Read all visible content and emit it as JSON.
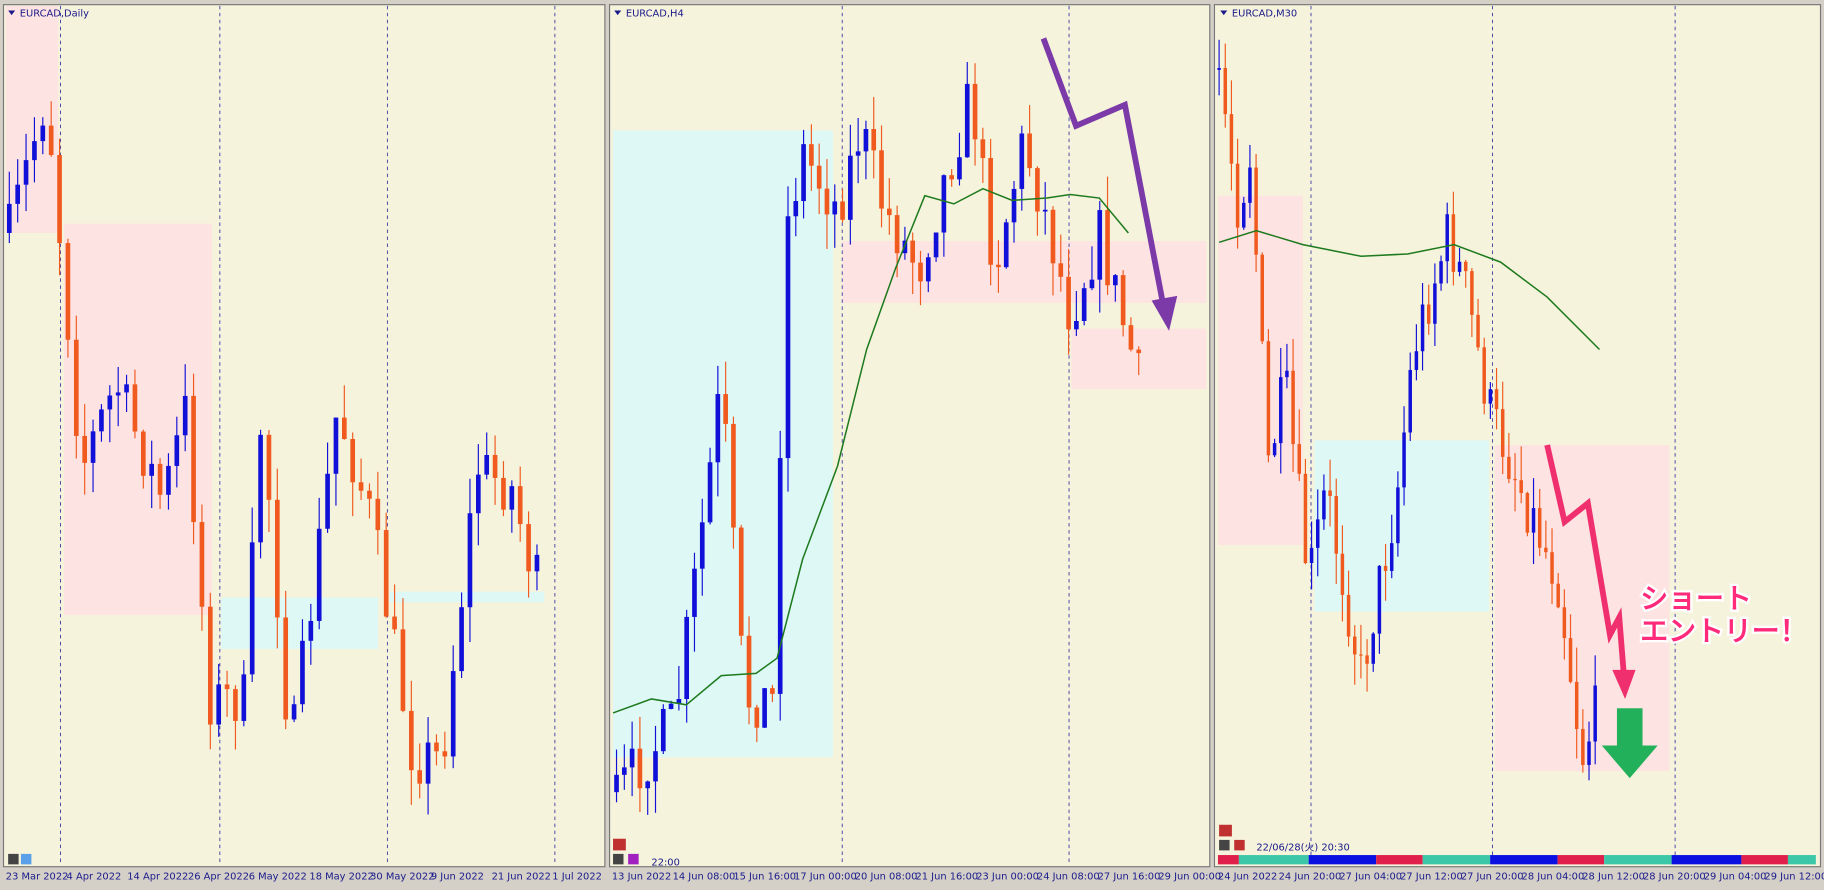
{
  "panels": [
    {
      "title": "EURCAD,Daily",
      "x_labels": [
        "23 Mar 2022",
        "4 Apr 2022",
        "14 Apr 2022",
        "26 Apr 2022",
        "6 May 2022",
        "18 May 2022",
        "30 May 2022",
        "9 Jun 2022",
        "21 Jun 2022",
        "1 Jul 2022"
      ]
    },
    {
      "title": "EURCAD,H4",
      "time": "22:00",
      "x_labels": [
        "13 Jun 2022",
        "14 Jun 08:00",
        "15 Jun 16:00",
        "17 Jun 00:00",
        "20 Jun 08:00",
        "21 Jun 16:00",
        "23 Jun 00:00",
        "24 Jun 08:00",
        "27 Jun 16:00",
        "29 Jun 00:00"
      ]
    },
    {
      "title": "EURCAD,M30",
      "time": "22/06/28(火) 20:30",
      "x_labels": [
        "24 Jun 2022",
        "24 Jun 20:00",
        "27 Jun 04:00",
        "27 Jun 12:00",
        "27 Jun 20:00",
        "28 Jun 04:00",
        "28 Jun 12:00",
        "28 Jun 20:00",
        "29 Jun 04:00",
        "29 Jun 12:00"
      ],
      "annotation": [
        "ショート",
        "エントリー！"
      ]
    }
  ]
}
